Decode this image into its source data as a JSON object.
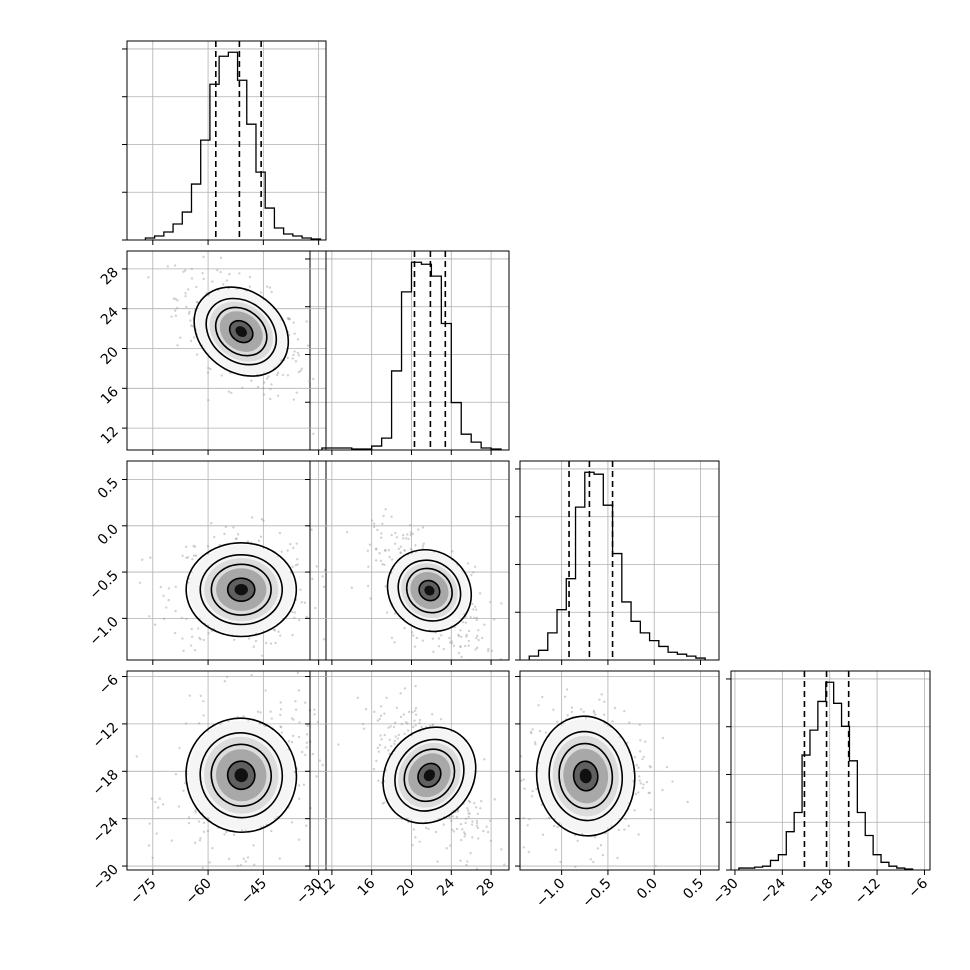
{
  "chart_data": {
    "type": "corner",
    "title": "",
    "grid": true,
    "parameters": [
      {
        "name": "",
        "range": [
          -82,
          -28
        ],
        "ticks": [
          -75,
          -60,
          -45,
          -30
        ],
        "tick_labels": [
          "−75",
          "−60",
          "−45",
          "−30"
        ]
      },
      {
        "name": "",
        "range": [
          9.8,
          29.8
        ],
        "ticks": [
          12,
          16,
          20,
          24,
          28
        ],
        "tick_labels": [
          "12",
          "16",
          "20",
          "24",
          "28"
        ]
      },
      {
        "name": "",
        "range": [
          -1.45,
          0.7
        ],
        "ticks": [
          -1.0,
          -0.5,
          0.0,
          0.5
        ],
        "tick_labels": [
          "−1.0",
          "−0.5",
          "0.0",
          "0.5"
        ]
      },
      {
        "name": "",
        "range": [
          -30.5,
          -5.3
        ],
        "ticks": [
          -30,
          -24,
          -18,
          -12,
          -6
        ],
        "tick_labels": [
          "−30",
          "−24",
          "−18",
          "−12",
          "−6"
        ]
      }
    ],
    "marginals": [
      {
        "edges": [
          -77,
          -74.5,
          -72,
          -69.5,
          -67,
          -64.5,
          -62,
          -59.5,
          -57,
          -54.5,
          -52,
          -49.5,
          -47,
          -44.5,
          -42,
          -39.5,
          -37,
          -34.5,
          -32,
          -29.5
        ],
        "counts": [
          1,
          2,
          4,
          8,
          14,
          28,
          50,
          78,
          92,
          94,
          80,
          58,
          34,
          16,
          6,
          3,
          2,
          1,
          0.5
        ],
        "quantiles": [
          -57.9,
          -51.5,
          -45.6
        ]
      },
      {
        "edges": [
          11,
          12,
          13,
          14,
          15,
          16,
          17,
          18,
          19,
          20,
          21,
          22,
          23,
          24,
          25,
          26,
          27,
          28,
          29
        ],
        "counts": [
          1,
          1,
          1,
          0.5,
          0.5,
          2,
          6,
          40,
          80,
          95,
          94,
          88,
          64,
          24,
          8,
          4,
          1,
          0.5
        ],
        "quantiles": [
          20.3,
          21.9,
          23.4
        ]
      },
      {
        "edges": [
          -1.35,
          -1.25,
          -1.15,
          -1.05,
          -0.95,
          -0.85,
          -0.75,
          -0.65,
          -0.55,
          -0.45,
          -0.35,
          -0.25,
          -0.15,
          -0.05,
          0.05,
          0.15,
          0.25,
          0.35,
          0.45,
          0.55
        ],
        "counts": [
          2,
          5,
          14,
          26,
          42,
          79,
          97,
          96,
          80,
          55,
          30,
          20,
          14,
          10,
          7,
          4,
          3,
          2,
          1
        ],
        "quantiles": [
          -0.92,
          -0.7,
          -0.45
        ]
      },
      {
        "edges": [
          -29.5,
          -28.5,
          -27.5,
          -26.5,
          -25.5,
          -24.5,
          -23.5,
          -22.5,
          -21.5,
          -20.5,
          -19.5,
          -18.5,
          -17.5,
          -16.5,
          -15.5,
          -14.5,
          -13.5,
          -12.5,
          -11.5,
          -10.5,
          -9.5,
          -8.5,
          -7.5
        ],
        "counts": [
          1,
          1,
          1.5,
          2,
          5,
          8,
          20,
          30,
          60,
          73,
          88,
          98,
          87,
          75,
          57,
          30,
          18,
          8,
          4,
          2,
          1,
          0.5
        ],
        "quantiles": [
          -21.2,
          -18.4,
          -15.6
        ]
      }
    ],
    "pairs": [
      {
        "i": 1,
        "j": 0,
        "mean": [
          -51,
          21.7
        ],
        "sd": [
          6.0,
          2.1
        ],
        "rho": -0.55,
        "n": 380
      },
      {
        "i": 2,
        "j": 0,
        "mean": [
          -51,
          -0.69
        ],
        "sd": [
          6.5,
          0.22
        ],
        "rho": 0.0,
        "n": 380
      },
      {
        "i": 2,
        "j": 1,
        "mean": [
          21.8,
          -0.7
        ],
        "sd": [
          1.9,
          0.22
        ],
        "rho": -0.55,
        "n": 380
      },
      {
        "i": 3,
        "j": 0,
        "mean": [
          -51,
          -18.5
        ],
        "sd": [
          6.5,
          3.4
        ],
        "rho": 0.25,
        "n": 380
      },
      {
        "i": 3,
        "j": 1,
        "mean": [
          21.8,
          -18.5
        ],
        "sd": [
          1.9,
          3.4
        ],
        "rho": -0.6,
        "n": 380
      },
      {
        "i": 3,
        "j": 2,
        "mean": [
          -0.74,
          -18.6
        ],
        "sd": [
          0.23,
          3.4
        ],
        "rho": 0.1,
        "n": 380
      }
    ],
    "contour_levels": [
      0.39,
      0.86,
      1.18,
      2.3
    ]
  }
}
